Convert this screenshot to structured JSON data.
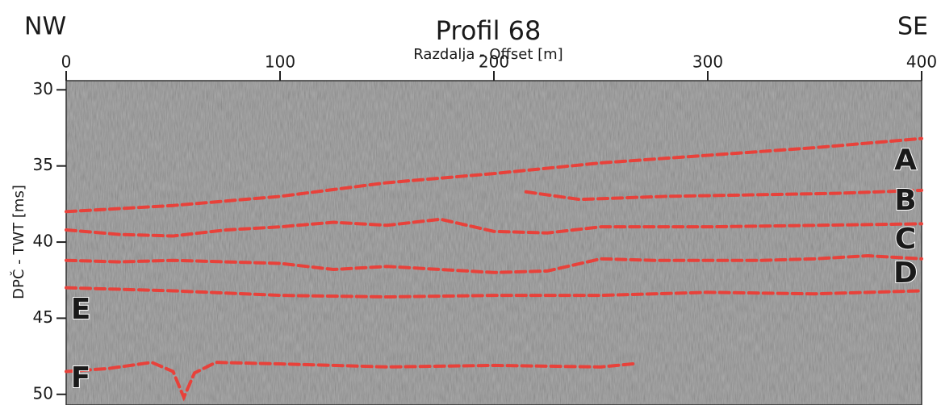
{
  "chart_data": {
    "type": "line",
    "title": "Profil 68",
    "left_label": "NW",
    "right_label": "SE",
    "x_label": "Razdalja - Offset [m]",
    "y_label": "DPČ - TWT [ms]",
    "xlim": [
      0,
      400
    ],
    "xticks": [
      0,
      100,
      200,
      300,
      400
    ],
    "ylim": [
      29.4,
      50.7
    ],
    "yticks": [
      30,
      35,
      40,
      45,
      50
    ],
    "y_inverted": true,
    "series": [
      {
        "color": "#e8413a",
        "x": [
          0,
          50,
          100,
          150,
          200,
          250,
          300,
          350,
          400
        ],
        "values": [
          38.0,
          37.6,
          37.0,
          36.1,
          35.5,
          34.8,
          34.3,
          33.8,
          33.2
        ]
      },
      {
        "color": "#e8413a",
        "x": [
          215,
          240,
          280,
          320,
          360,
          400
        ],
        "values": [
          36.7,
          37.2,
          37.0,
          36.9,
          36.8,
          36.6
        ]
      },
      {
        "color": "#e8413a",
        "x": [
          0,
          25,
          50,
          75,
          100,
          125,
          150,
          175,
          200,
          225,
          250,
          300,
          350,
          400
        ],
        "values": [
          39.2,
          39.5,
          39.6,
          39.2,
          39.0,
          38.7,
          38.9,
          38.5,
          39.3,
          39.4,
          39.0,
          39.0,
          38.9,
          38.8
        ]
      },
      {
        "color": "#e8413a",
        "x": [
          0,
          25,
          50,
          75,
          100,
          125,
          150,
          175,
          200,
          225,
          250,
          275,
          300,
          325,
          350,
          375,
          400
        ],
        "values": [
          41.2,
          41.3,
          41.2,
          41.3,
          41.4,
          41.8,
          41.6,
          41.8,
          42.0,
          41.9,
          41.1,
          41.2,
          41.2,
          41.2,
          41.1,
          40.9,
          41.1
        ]
      },
      {
        "color": "#e8413a",
        "x": [
          0,
          50,
          100,
          150,
          200,
          250,
          300,
          350,
          400
        ],
        "values": [
          43.0,
          43.2,
          43.5,
          43.6,
          43.5,
          43.5,
          43.3,
          43.4,
          43.2
        ]
      },
      {
        "color": "#e8413a",
        "x": [
          0,
          20,
          40,
          50,
          55,
          60,
          70,
          100,
          150,
          200,
          250,
          265
        ],
        "values": [
          48.5,
          48.3,
          47.9,
          48.5,
          50.2,
          48.6,
          47.9,
          48.0,
          48.2,
          48.1,
          48.2,
          48.0
        ]
      }
    ],
    "annotations": [
      "A",
      "B",
      "C",
      "D",
      "E",
      "F"
    ]
  }
}
